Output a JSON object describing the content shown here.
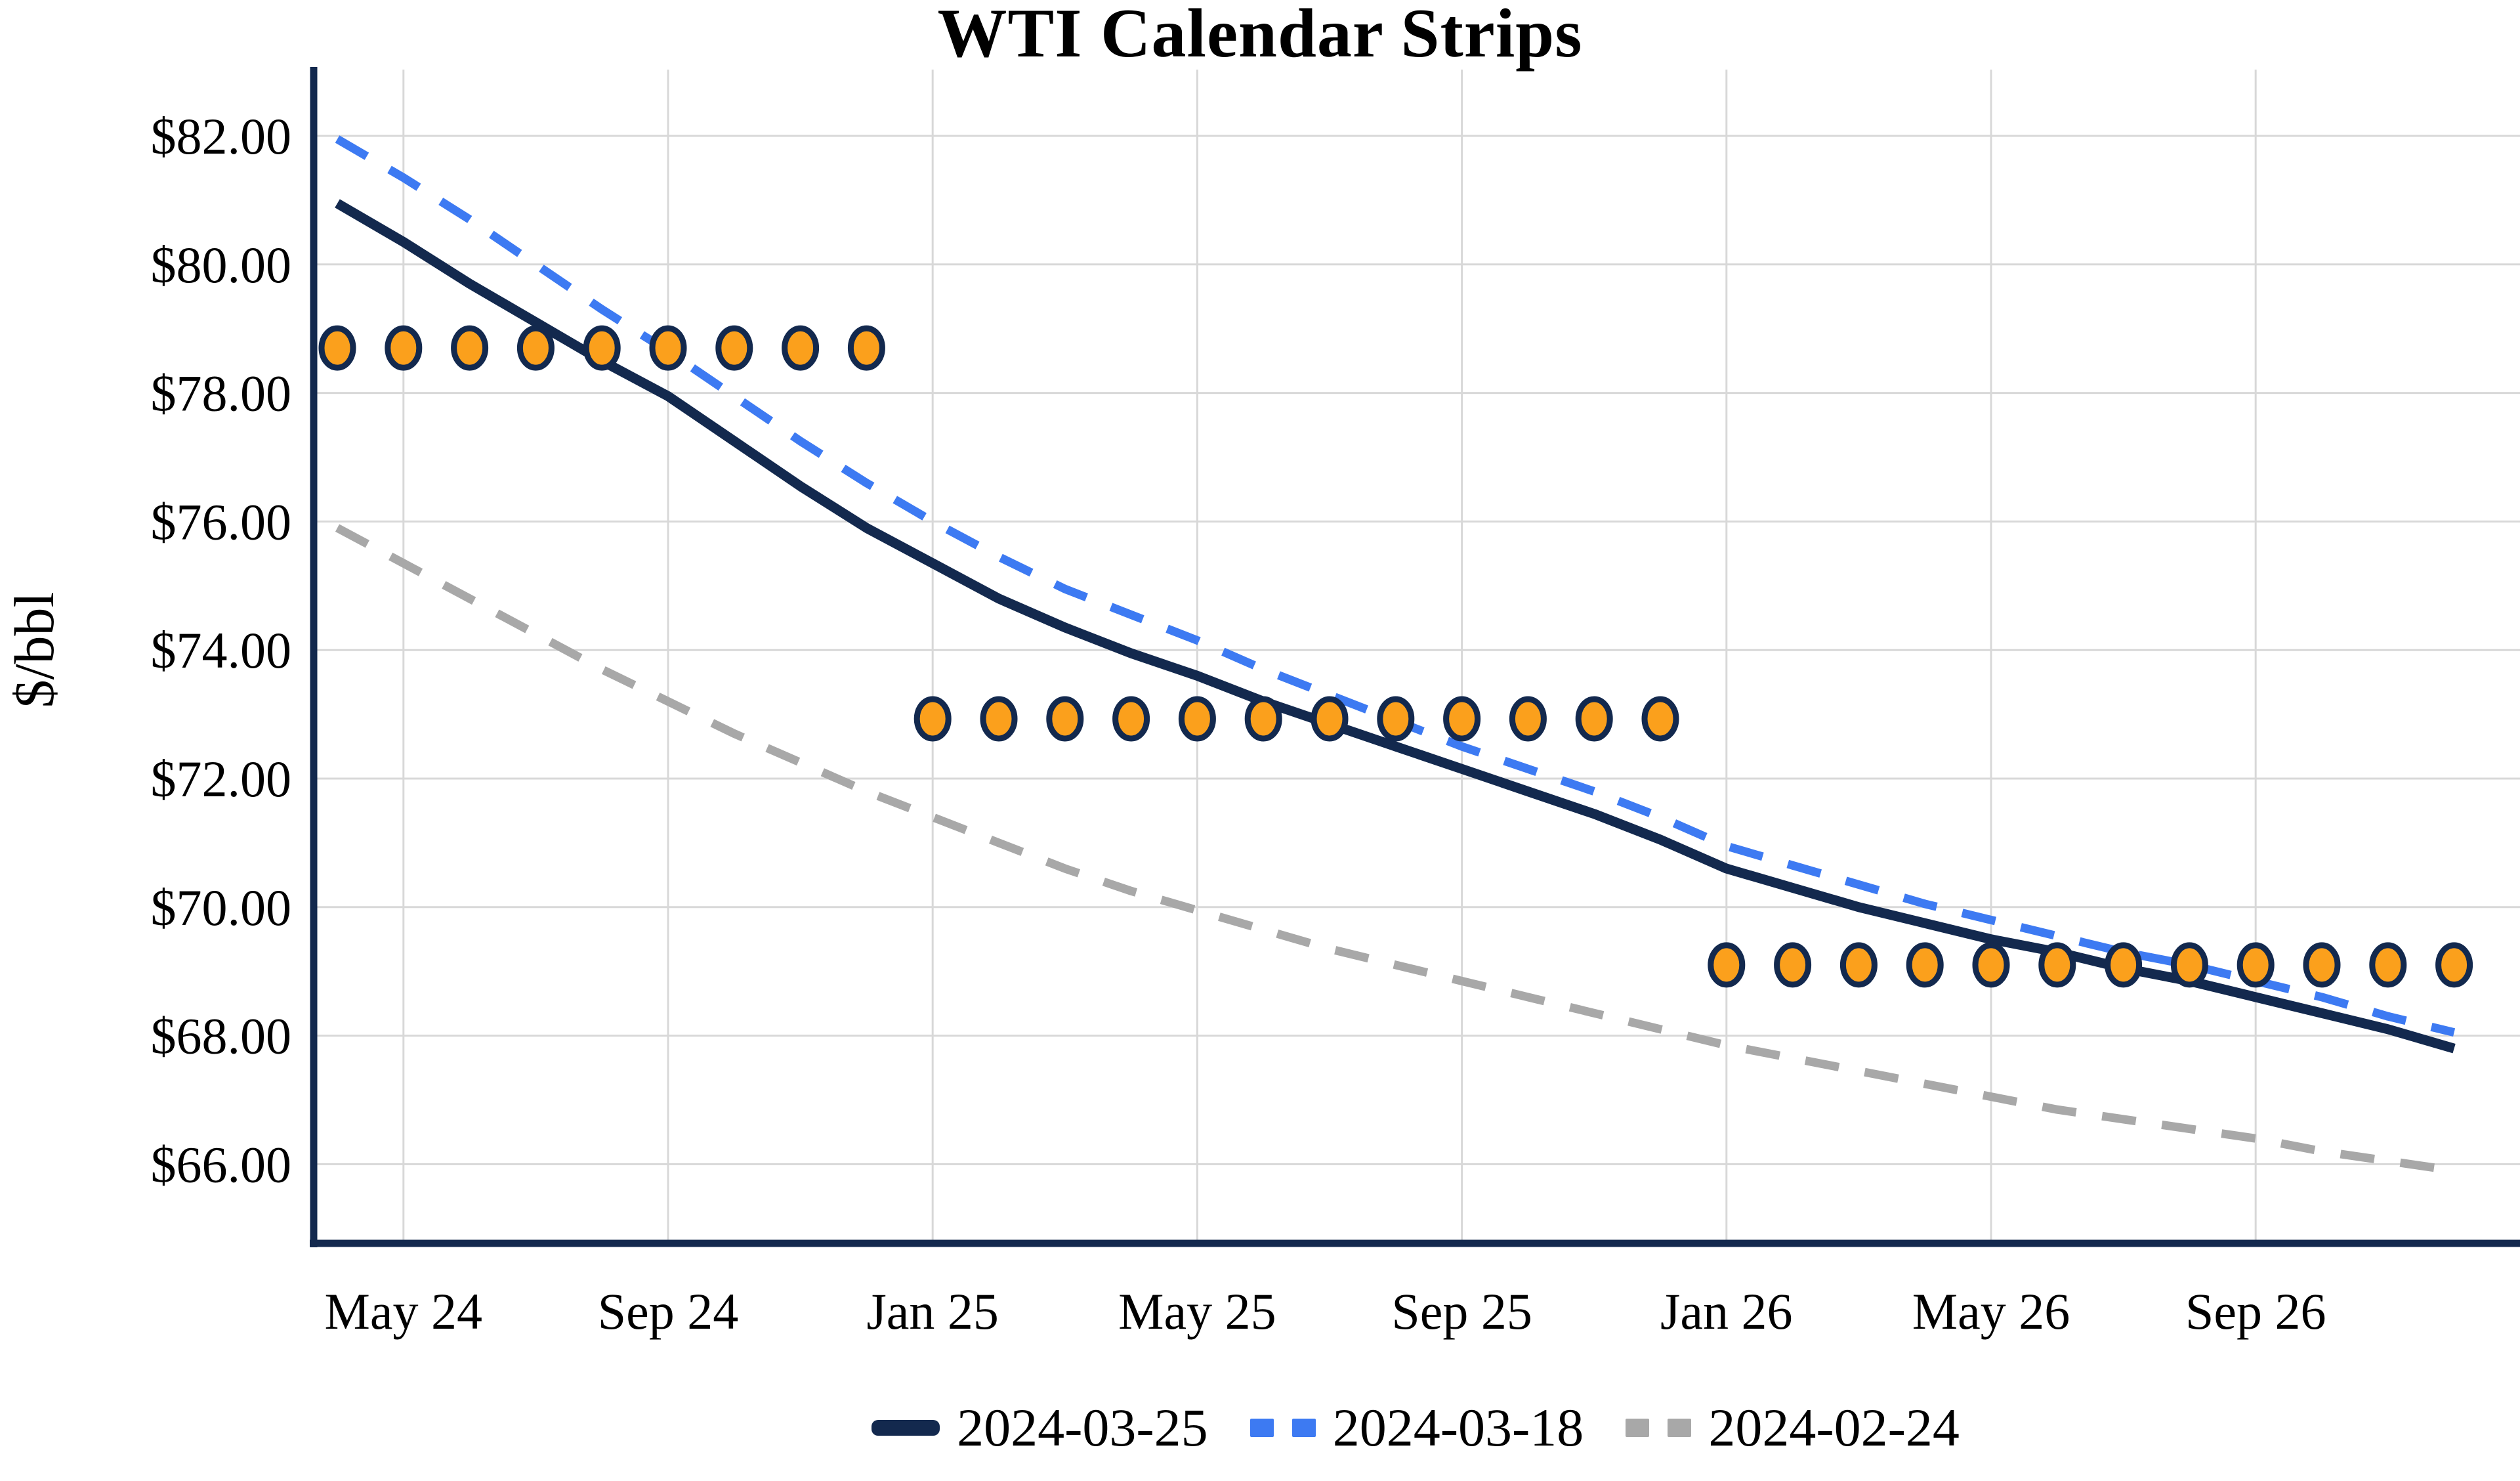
{
  "title": "WTI Calendar Strips",
  "y_axis": {
    "label": "$/bbl",
    "ticks": [
      {
        "value": 82,
        "label": "$82.00"
      },
      {
        "value": 80,
        "label": "$80.00"
      },
      {
        "value": 78,
        "label": "$78.00"
      },
      {
        "value": 76,
        "label": "$76.00"
      },
      {
        "value": 74,
        "label": "$74.00"
      },
      {
        "value": 72,
        "label": "$72.00"
      },
      {
        "value": 70,
        "label": "$70.00"
      },
      {
        "value": 68,
        "label": "$68.00"
      },
      {
        "value": 66,
        "label": "$66.00"
      }
    ]
  },
  "x_axis": {
    "ticks": [
      {
        "month_index": 1,
        "label": "May 24"
      },
      {
        "month_index": 5,
        "label": "Sep 24"
      },
      {
        "month_index": 9,
        "label": "Jan 25"
      },
      {
        "month_index": 13,
        "label": "May 25"
      },
      {
        "month_index": 17,
        "label": "Sep 25"
      },
      {
        "month_index": 21,
        "label": "Jan 26"
      },
      {
        "month_index": 25,
        "label": "May 26"
      },
      {
        "month_index": 29,
        "label": "Sep 26"
      }
    ]
  },
  "legend": [
    {
      "label": "2024-03-25",
      "color": "#13294e",
      "style": "solid"
    },
    {
      "label": "2024-03-18",
      "color": "#3d7af2",
      "style": "dashed"
    },
    {
      "label": "2024-02-24",
      "color": "#a8a8a8",
      "style": "dashed"
    }
  ],
  "colors": {
    "navy": "#13294e",
    "blue": "#3d7af2",
    "gray": "#a8a8a8",
    "orange": "#fba01c",
    "gridline": "#d8d8d8",
    "background": "#ffffff"
  },
  "chart_data": {
    "type": "line",
    "title": "WTI Calendar Strips",
    "ylabel": "$/bbl",
    "ylim": [
      64.8,
      83.0
    ],
    "grid": true,
    "legend_position": "bottom",
    "x_months": [
      "Apr 24",
      "May 24",
      "Jun 24",
      "Jul 24",
      "Aug 24",
      "Sep 24",
      "Oct 24",
      "Nov 24",
      "Dec 24",
      "Jan 25",
      "Feb 25",
      "Mar 25",
      "Apr 25",
      "May 25",
      "Jun 25",
      "Jul 25",
      "Aug 25",
      "Sep 25",
      "Oct 25",
      "Nov 25",
      "Dec 25",
      "Jan 26",
      "Feb 26",
      "Mar 26",
      "Apr 26",
      "May 26",
      "Jun 26",
      "Jul 26",
      "Aug 26",
      "Sep 26",
      "Oct 26",
      "Nov 26",
      "Dec 26"
    ],
    "series": [
      {
        "name": "2024-03-25",
        "color": "#13294e",
        "style": "solid",
        "values": [
          80.95,
          80.35,
          79.7,
          79.1,
          78.5,
          77.95,
          77.25,
          76.55,
          75.9,
          75.35,
          74.8,
          74.35,
          73.95,
          73.6,
          73.2,
          72.85,
          72.5,
          72.15,
          71.8,
          71.45,
          71.05,
          70.6,
          70.3,
          70.0,
          69.75,
          69.5,
          69.3,
          69.05,
          68.85,
          68.6,
          68.35,
          68.1,
          67.8
        ]
      },
      {
        "name": "2024-03-18",
        "color": "#3d7af2",
        "style": "dashed",
        "values": [
          81.95,
          81.35,
          80.7,
          80.0,
          79.3,
          78.65,
          77.95,
          77.25,
          76.6,
          76.0,
          75.45,
          74.95,
          74.55,
          74.15,
          73.7,
          73.3,
          72.9,
          72.5,
          72.15,
          71.8,
          71.4,
          70.95,
          70.65,
          70.35,
          70.05,
          69.8,
          69.55,
          69.3,
          69.1,
          68.85,
          68.6,
          68.3,
          68.05
        ]
      },
      {
        "name": "2024-02-24",
        "color": "#a8a8a8",
        "style": "dashed",
        "values": [
          75.9,
          75.35,
          74.8,
          74.25,
          73.7,
          73.2,
          72.7,
          72.25,
          71.8,
          71.4,
          71.0,
          70.6,
          70.25,
          69.95,
          69.65,
          69.35,
          69.1,
          68.85,
          68.6,
          68.35,
          68.1,
          67.85,
          67.65,
          67.45,
          67.25,
          67.05,
          66.85,
          66.7,
          66.55,
          66.4,
          66.2,
          66.05,
          65.9
        ]
      }
    ],
    "markers": {
      "color": "#fba01c",
      "border_color": "#13294e",
      "groups": [
        {
          "value": 78.7,
          "from": 0,
          "to": 8,
          "from_month": "Apr 24",
          "to_month": "Dec 24"
        },
        {
          "value": 72.93,
          "from": 9,
          "to": 20,
          "from_month": "Jan 25",
          "to_month": "Dec 25"
        },
        {
          "value": 69.1,
          "from": 21,
          "to": 32,
          "from_month": "Jan 26",
          "to_month": "Dec 26"
        }
      ]
    }
  }
}
